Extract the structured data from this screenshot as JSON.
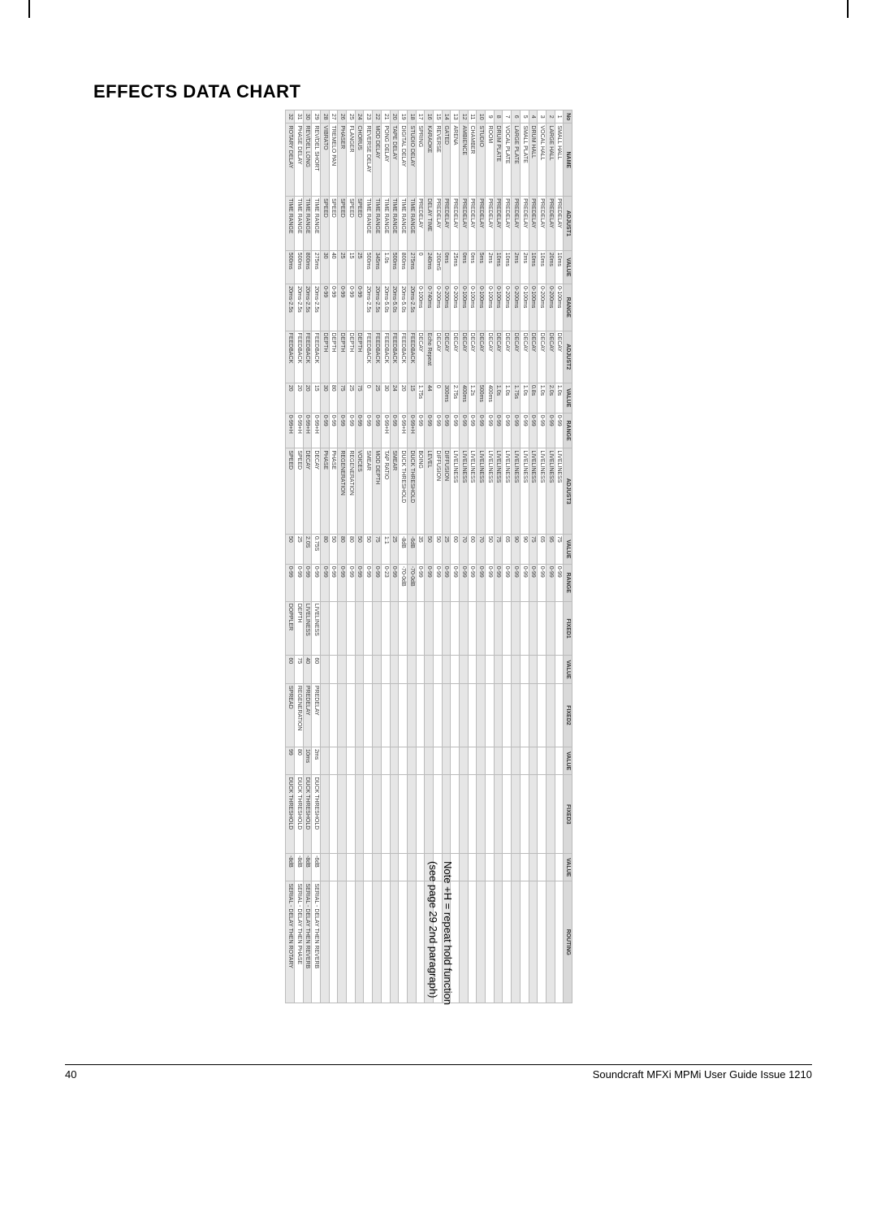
{
  "page": {
    "title": "EFFECTS DATA CHART",
    "footnote_line1": "Note +H = repeat hold function",
    "footnote_line2": "(see page 29 2nd paragraph)",
    "footer_page": "40",
    "footer_text": "Soundcraft MFXi MPMi User Guide Issue 1210"
  },
  "table": {
    "headers": [
      "No",
      "NAME",
      "ADJUST1",
      "VALUE",
      "RANGE",
      "ADJUST2",
      "VALUE",
      "RANGE",
      "ADJUST3",
      "VALUE",
      "RANGE",
      "FIXED1",
      "VALUE",
      "FIXED2",
      "VALUE",
      "FIXED3",
      "VALUE",
      "ROUTING"
    ],
    "rows": [
      {
        "no": "1",
        "name": "SMALL HALL",
        "a1": "PREDELAY",
        "v1": "10ms",
        "r1": "0-100ms",
        "a2": "DECAY",
        "v2": "1.0s",
        "r2": "0-99",
        "a3": "LIVELINESS",
        "v3": "75",
        "r3": "0-99",
        "f1": "",
        "fv1": "",
        "f2": "",
        "fv2": "",
        "f3": "",
        "fv3": "",
        "route": ""
      },
      {
        "no": "2",
        "name": "LARGE HALL",
        "a1": "PREDELAY",
        "v1": "20ms",
        "r1": "0-200ms",
        "a2": "DECAY",
        "v2": "2.0s",
        "r2": "0-99",
        "a3": "LIVELINESS",
        "v3": "95",
        "r3": "0-99",
        "f1": "",
        "fv1": "",
        "f2": "",
        "fv2": "",
        "f3": "",
        "fv3": "",
        "route": ""
      },
      {
        "no": "3",
        "name": "VOCAL HALL",
        "a1": "PREDELAY",
        "v1": "10ms",
        "r1": "0-200ms",
        "a2": "DECAY",
        "v2": "1.0s",
        "r2": "0-99",
        "a3": "LIVELINESS",
        "v3": "65",
        "r3": "0-99",
        "f1": "",
        "fv1": "",
        "f2": "",
        "fv2": "",
        "f3": "",
        "fv3": "",
        "route": ""
      },
      {
        "no": "4",
        "name": "DRUM HALL",
        "a1": "PREDELAY",
        "v1": "10ms",
        "r1": "0-100ms",
        "a2": "DECAY",
        "v2": "0.8s",
        "r2": "0-99",
        "a3": "LIVELINESS",
        "v3": "75",
        "r3": "0-99",
        "f1": "",
        "fv1": "",
        "f2": "",
        "fv2": "",
        "f3": "",
        "fv3": "",
        "route": ""
      },
      {
        "no": "5",
        "name": "SMALL PLATE",
        "a1": "PREDELAY",
        "v1": "2ms",
        "r1": "0-100ms",
        "a2": "DECAY",
        "v2": "1.0s",
        "r2": "0-99",
        "a3": "LIVELINESS",
        "v3": "90",
        "r3": "0-99",
        "f1": "",
        "fv1": "",
        "f2": "",
        "fv2": "",
        "f3": "",
        "fv3": "",
        "route": ""
      },
      {
        "no": "6",
        "name": "LARGE PLATE",
        "a1": "PREDELAY",
        "v1": "2ms",
        "r1": "0-200ms",
        "a2": "DECAY",
        "v2": "1.75s",
        "r2": "0-99",
        "a3": "LIVELINESS",
        "v3": "90",
        "r3": "0-99",
        "f1": "",
        "fv1": "",
        "f2": "",
        "fv2": "",
        "f3": "",
        "fv3": "",
        "route": ""
      },
      {
        "no": "7",
        "name": "VOCAL PLATE",
        "a1": "PREDELAY",
        "v1": "10ms",
        "r1": "0-200ms",
        "a2": "DECAY",
        "v2": "1.0s",
        "r2": "0-99",
        "a3": "LIVELINESS",
        "v3": "65",
        "r3": "0-99",
        "f1": "",
        "fv1": "",
        "f2": "",
        "fv2": "",
        "f3": "",
        "fv3": "",
        "route": ""
      },
      {
        "no": "8",
        "name": "DRUM PLATE",
        "a1": "PREDELAY",
        "v1": "10ms",
        "r1": "0-100ms",
        "a2": "DECAY",
        "v2": "1.0s",
        "r2": "0-99",
        "a3": "LIVELINESS",
        "v3": "75",
        "r3": "0-99",
        "f1": "",
        "fv1": "",
        "f2": "",
        "fv2": "",
        "f3": "",
        "fv3": "",
        "route": ""
      },
      {
        "no": "9",
        "name": "ROOM",
        "a1": "PREDELAY",
        "v1": "2ms",
        "r1": "0-100ms",
        "a2": "DECAY",
        "v2": "400ms",
        "r2": "0-99",
        "a3": "LIVELINESS",
        "v3": "50",
        "r3": "0-99",
        "f1": "",
        "fv1": "",
        "f2": "",
        "fv2": "",
        "f3": "",
        "fv3": "",
        "route": ""
      },
      {
        "no": "10",
        "name": "STUDIO",
        "a1": "PREDELAY",
        "v1": "5ms",
        "r1": "0-100ms",
        "a2": "DECAY",
        "v2": "500ms",
        "r2": "0-99",
        "a3": "LIVELINESS",
        "v3": "70",
        "r3": "0-99",
        "f1": "",
        "fv1": "",
        "f2": "",
        "fv2": "",
        "f3": "",
        "fv3": "",
        "route": ""
      },
      {
        "no": "11",
        "name": "CHAMBER",
        "a1": "PREDELAY",
        "v1": "0ms",
        "r1": "0-100ms",
        "a2": "DECAY",
        "v2": "1.2s",
        "r2": "0-99",
        "a3": "LIVELINESS",
        "v3": "60",
        "r3": "0-99",
        "f1": "",
        "fv1": "",
        "f2": "",
        "fv2": "",
        "f3": "",
        "fv3": "",
        "route": ""
      },
      {
        "no": "12",
        "name": "AMBIENCE",
        "a1": "PREDELAY",
        "v1": "0ms",
        "r1": "0-100ms",
        "a2": "DECAY",
        "v2": "400ms",
        "r2": "0-99",
        "a3": "LIVELINESS",
        "v3": "70",
        "r3": "0-99",
        "f1": "",
        "fv1": "",
        "f2": "",
        "fv2": "",
        "f3": "",
        "fv3": "",
        "route": ""
      },
      {
        "no": "13",
        "name": "ARENA",
        "a1": "PREDELAY",
        "v1": "25ms",
        "r1": "0-200ms",
        "a2": "DECAY",
        "v2": "2.75s",
        "r2": "0-99",
        "a3": "LIVELINESS",
        "v3": "60",
        "r3": "0-99",
        "f1": "",
        "fv1": "",
        "f2": "",
        "fv2": "",
        "f3": "",
        "fv3": "",
        "route": ""
      },
      {
        "no": "14",
        "name": "GATED",
        "a1": "PREDELAY",
        "v1": "0ms",
        "r1": "0-200ms",
        "a2": "DECAY",
        "v2": "300ms",
        "r2": "0-99",
        "a3": "DIFFUSION",
        "v3": "25",
        "r3": "0-99",
        "f1": "",
        "fv1": "",
        "f2": "",
        "fv2": "",
        "f3": "",
        "fv3": "",
        "route": ""
      },
      {
        "no": "15",
        "name": "REVERSE",
        "a1": "PREDELAY",
        "v1": "200mS",
        "r1": "0-200ms",
        "a2": "DECAY",
        "v2": "0",
        "r2": "0-99",
        "a3": "DIFFUSION",
        "v3": "50",
        "r3": "0-99",
        "f1": "",
        "fv1": "",
        "f2": "",
        "fv2": "",
        "f3": "",
        "fv3": "",
        "route": ""
      },
      {
        "no": "16",
        "name": "KARAOKE",
        "a1": "DELAY TIME",
        "v1": "240ms",
        "r1": "0-740ms",
        "a2": "Echo Repeat",
        "v2": "44",
        "r2": "0-99",
        "a3": "LEVEL",
        "v3": "50",
        "r3": "0-99",
        "f1": "",
        "fv1": "",
        "f2": "",
        "fv2": "",
        "f3": "",
        "fv3": "",
        "route": ""
      },
      {
        "no": "17",
        "name": "SPRING",
        "a1": "PREDELAY",
        "v1": "0",
        "r1": "0-100ms",
        "a2": "DECAY",
        "v2": "1.75s",
        "r2": "0-99",
        "a3": "BOING",
        "v3": "35",
        "r3": "0-99",
        "f1": "",
        "fv1": "",
        "f2": "",
        "fv2": "",
        "f3": "",
        "fv3": "",
        "route": ""
      },
      {
        "no": "18",
        "name": "STUDIO DELAY",
        "a1": "TIME RANGE",
        "v1": "275ms",
        "r1": "20ms-2.5s",
        "a2": "FEEDBACK",
        "v2": "15",
        "r2": "0-99+H",
        "a3": "DUCK THRESHOLD",
        "v3": "-6dB",
        "r3": "-70-0dB",
        "f1": "",
        "fv1": "",
        "f2": "",
        "fv2": "",
        "f3": "",
        "fv3": "",
        "route": ""
      },
      {
        "no": "19",
        "name": "DIGITAL DELAY",
        "a1": "TIME RANGE",
        "v1": "800ms",
        "r1": "20ms-5.0s",
        "a2": "FEEDBACK",
        "v2": "20",
        "r2": "0-99+H",
        "a3": "DUCK THRESHOLD",
        "v3": "-8dB",
        "r3": "-70-0dB",
        "f1": "",
        "fv1": "",
        "f2": "",
        "fv2": "",
        "f3": "",
        "fv3": "",
        "route": ""
      },
      {
        "no": "20",
        "name": "TAPE DELAY",
        "a1": "TIME RANGE",
        "v1": "500ms",
        "r1": "20ms-5.0s",
        "a2": "FEEDBACK",
        "v2": "24",
        "r2": "0-99",
        "a3": "SMEAR",
        "v3": "25",
        "r3": "0-99",
        "f1": "",
        "fv1": "",
        "f2": "",
        "fv2": "",
        "f3": "",
        "fv3": "",
        "route": ""
      },
      {
        "no": "21",
        "name": "PONG DELAY",
        "a1": "TIME RANGE",
        "v1": "1.0s",
        "r1": "20ms-5.0s",
        "a2": "FEEDBACK",
        "v2": "30",
        "r2": "0-99+H",
        "a3": "TAP RATIO",
        "v3": "1:1",
        "r3": "0-23",
        "f1": "",
        "fv1": "",
        "f2": "",
        "fv2": "",
        "f3": "",
        "fv3": "",
        "route": ""
      },
      {
        "no": "22",
        "name": "MOD DELAY",
        "a1": "TIME RANGE",
        "v1": "345ms",
        "r1": "20ms-2.5s",
        "a2": "FEEDBACK",
        "v2": "25",
        "r2": "0-99",
        "a3": "MOD DEPTH",
        "v3": "75",
        "r3": "0-99",
        "f1": "",
        "fv1": "",
        "f2": "",
        "fv2": "",
        "f3": "",
        "fv3": "",
        "route": ""
      },
      {
        "no": "23",
        "name": "REVERSE DELAY",
        "a1": "TIME RANGE",
        "v1": "500ms",
        "r1": "20ms-2.5s",
        "a2": "FEEDBACK",
        "v2": "0",
        "r2": "0-99",
        "a3": "SMEAR",
        "v3": "50",
        "r3": "0-99",
        "f1": "",
        "fv1": "",
        "f2": "",
        "fv2": "",
        "f3": "",
        "fv3": "",
        "route": ""
      },
      {
        "no": "24",
        "name": "CHORUS",
        "a1": "SPEED",
        "v1": "25",
        "r1": "0-99",
        "a2": "DEPTH",
        "v2": "75",
        "r2": "0-99",
        "a3": "VOICES",
        "v3": "50",
        "r3": "0-99",
        "f1": "",
        "fv1": "",
        "f2": "",
        "fv2": "",
        "f3": "",
        "fv3": "",
        "route": ""
      },
      {
        "no": "25",
        "name": "FLANGER",
        "a1": "SPEED",
        "v1": "15",
        "r1": "0-99",
        "a2": "DEPTH",
        "v2": "25",
        "r2": "0-99",
        "a3": "REGENERATION",
        "v3": "80",
        "r3": "0-99",
        "f1": "",
        "fv1": "",
        "f2": "",
        "fv2": "",
        "f3": "",
        "fv3": "",
        "route": ""
      },
      {
        "no": "26",
        "name": "PHASER",
        "a1": "SPEED",
        "v1": "25",
        "r1": "0-99",
        "a2": "DEPTH",
        "v2": "75",
        "r2": "0-99",
        "a3": "REGENERATION",
        "v3": "80",
        "r3": "0-99",
        "f1": "",
        "fv1": "",
        "f2": "",
        "fv2": "",
        "f3": "",
        "fv3": "",
        "route": ""
      },
      {
        "no": "27",
        "name": "TREMELO PAN",
        "a1": "SPEED",
        "v1": "40",
        "r1": "0-99",
        "a2": "DEPTH",
        "v2": "80",
        "r2": "0-99",
        "a3": "PHASE",
        "v3": "50",
        "r3": "0-99",
        "f1": "",
        "fv1": "",
        "f2": "",
        "fv2": "",
        "f3": "",
        "fv3": "",
        "route": ""
      },
      {
        "no": "28",
        "name": "VIBRATO",
        "a1": "SPEED",
        "v1": "30",
        "r1": "0-99",
        "a2": "DEPTH",
        "v2": "30",
        "r2": "0-99",
        "a3": "PHASE",
        "v3": "80",
        "r3": "0-99",
        "f1": "",
        "fv1": "",
        "f2": "",
        "fv2": "",
        "f3": "",
        "fv3": "",
        "route": ""
      },
      {
        "no": "29",
        "name": "REV/DEL SHORT",
        "a1": "TIME RANGE",
        "v1": "275ms",
        "r1": "20ms-2.5s",
        "a2": "FEEDBACK",
        "v2": "15",
        "r2": "0-99+H",
        "a3": "DECAY",
        "v3": "0.75S",
        "r3": "0-99",
        "f1": "LIVELINESS",
        "fv1": "60",
        "f2": "PREDELAY",
        "fv2": "2ms",
        "f3": "DUCK THRESHOLD",
        "fv3": "-6dB",
        "route": "SERIAL - DELAY THEN REVERB"
      },
      {
        "no": "30",
        "name": "REV/DEL LONG",
        "a1": "TIME RANGE",
        "v1": "800ms",
        "r1": "20ms-2.5s",
        "a2": "FEEDBACK",
        "v2": "20",
        "r2": "0-99+H",
        "a3": "DECAY",
        "v3": "2.0S",
        "r3": "0-99",
        "f1": "LIVELINESS",
        "fv1": "40",
        "f2": "PREDELAY",
        "fv2": "10ms",
        "f3": "DUCK THRESHOLD",
        "fv3": "-8dB",
        "route": "SERIAL - DELAY THEN REVERB"
      },
      {
        "no": "31",
        "name": "PHASE DELAY",
        "a1": "TIME RANGE",
        "v1": "500ms",
        "r1": "20ms-2.5s",
        "a2": "FEEDBACK",
        "v2": "20",
        "r2": "0-99+H",
        "a3": "SPEED",
        "v3": "25",
        "r3": "0-99",
        "f1": "DEPTH",
        "fv1": "75",
        "f2": "REGENERATION",
        "fv2": "80",
        "f3": "DUCK THRESHOLD",
        "fv3": "-8dB",
        "route": "SERIAL - DELAY THEN PHASE"
      },
      {
        "no": "32",
        "name": "ROTARY DELAY",
        "a1": "TIME RANGE",
        "v1": "500ms",
        "r1": "20ms-2.5s",
        "a2": "FEEDBACK",
        "v2": "20",
        "r2": "0-99+H",
        "a3": "SPEED",
        "v3": "50",
        "r3": "0-99",
        "f1": "DOPPLER",
        "fv1": "60",
        "f2": "SPREAD",
        "fv2": "99",
        "f3": "DUCK THRESHOLD",
        "fv3": "-8dB",
        "route": "SERIAL - DELAY THEN ROTARY"
      }
    ]
  },
  "style": {
    "header_bg": "#d9d9d9",
    "shade_bg": "#e6e6e6",
    "border_color": "#bbbbbb",
    "text_color": "#333333",
    "title_color": "#000000",
    "page_bg": "#ffffff",
    "font_size_table": 7,
    "font_size_title": 22,
    "font_size_footer": 13
  }
}
